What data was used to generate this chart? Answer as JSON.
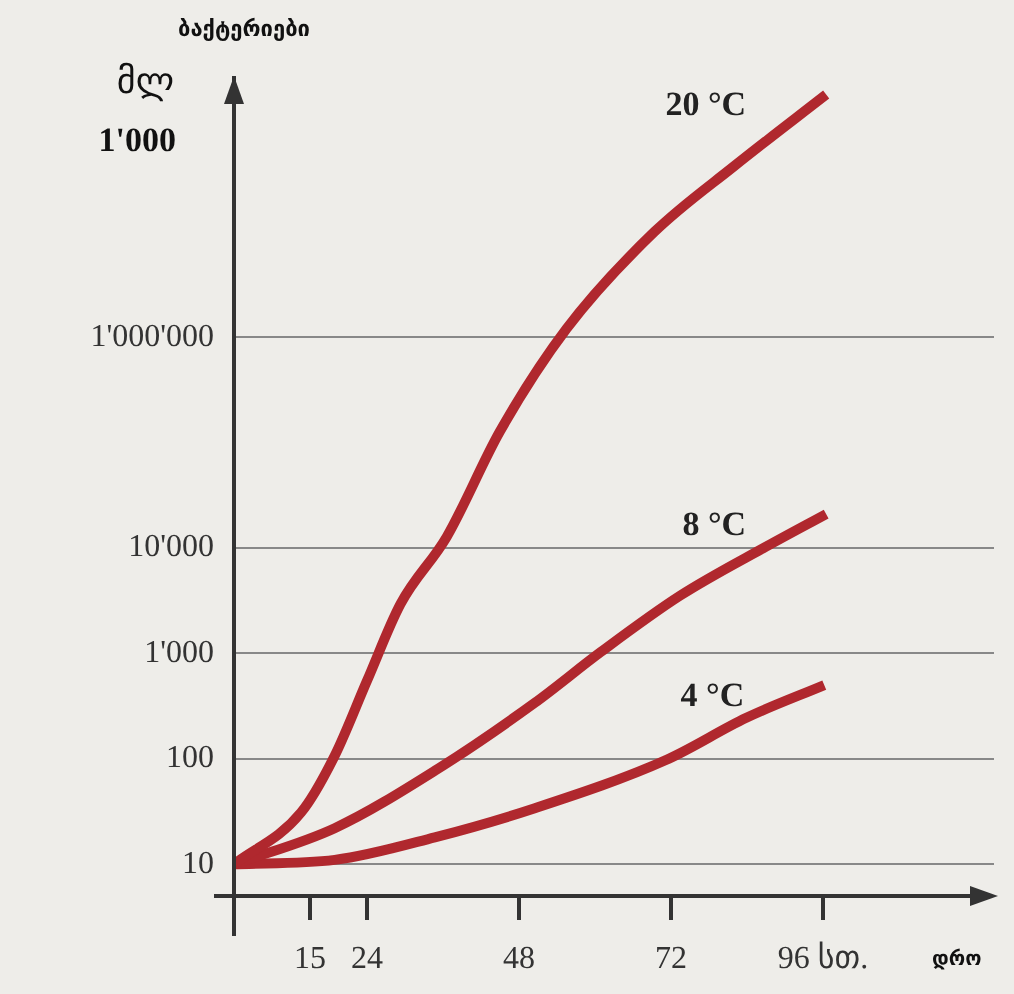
{
  "chart_data": {
    "type": "line",
    "ylabel": "ბაქტერიები",
    "xlabel": "დრო",
    "annotations": [
      "მლ",
      "1'000"
    ],
    "log": "y",
    "grid": "y",
    "line_style": "solid",
    "marker": "none",
    "xlim": [
      3,
      123
    ],
    "xticks": [
      15,
      24,
      48,
      72,
      {
        "value": 96,
        "label": "96 სთ."
      }
    ],
    "ylim": [
      5,
      300000000
    ],
    "yticks": [
      10,
      100,
      {
        "value": 1000,
        "label": "1'000"
      },
      {
        "value": 10000,
        "label": "10'000"
      },
      {
        "value": 1000000,
        "label": "1'000'000"
      }
    ],
    "series": [
      {
        "name": "20 °C",
        "color": "#b0282e",
        "x": [
          3,
          13.6,
          18.9,
          24,
          29.3,
          36.6,
          45,
          55.5,
          69.4,
          82,
          96.5
        ],
        "values": [
          10,
          31,
          107,
          550,
          2950,
          12800,
          128000,
          1200000,
          10000000,
          42000000,
          200000000
        ]
      },
      {
        "name": "8 °C",
        "color": "#b0282e",
        "x": [
          3,
          18.9,
          34.7,
          50.5,
          60.9,
          73.5,
          87,
          96.5
        ],
        "values": [
          10,
          22,
          77,
          340,
          1030,
          3550,
          10300,
          21000
        ]
      },
      {
        "name": "4 °C",
        "color": "#b0282e",
        "x": [
          3,
          18.9,
          34.7,
          50.5,
          71.3,
          83.9,
          96.2
        ],
        "values": [
          10,
          11,
          18,
          34,
          98,
          245,
          500
        ]
      }
    ]
  }
}
